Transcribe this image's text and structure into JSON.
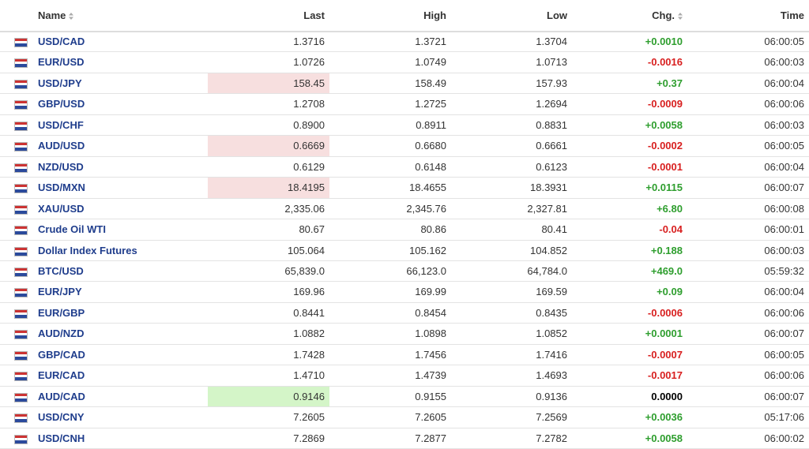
{
  "table": {
    "header": [
      "Name",
      "Last",
      "High",
      "Low",
      "Chg.",
      "Time"
    ],
    "rows": [
      [
        "USD/CAD",
        "1.3716",
        "1.3721",
        "1.3704",
        "+0.0010",
        "06:00:05"
      ],
      [
        "EUR/USD",
        "1.0726",
        "1.0749",
        "1.0713",
        "-0.0016",
        "06:00:03"
      ],
      [
        "USD/JPY",
        "158.45",
        "158.49",
        "157.93",
        "+0.37",
        "06:00:04"
      ],
      [
        "GBP/USD",
        "1.2708",
        "1.2725",
        "1.2694",
        "-0.0009",
        "06:00:06"
      ],
      [
        "USD/CHF",
        "0.8900",
        "0.8911",
        "0.8831",
        "+0.0058",
        "06:00:03"
      ],
      [
        "AUD/USD",
        "0.6669",
        "0.6680",
        "0.6661",
        "-0.0002",
        "06:00:05"
      ],
      [
        "NZD/USD",
        "0.6129",
        "0.6148",
        "0.6123",
        "-0.0001",
        "06:00:04"
      ],
      [
        "USD/MXN",
        "18.4195",
        "18.4655",
        "18.3931",
        "+0.0115",
        "06:00:07"
      ],
      [
        "XAU/USD",
        "2,335.06",
        "2,345.76",
        "2,327.81",
        "+6.80",
        "06:00:08"
      ],
      [
        "Crude Oil WTI",
        "80.67",
        "80.86",
        "80.41",
        "-0.04",
        "06:00:01"
      ],
      [
        "Dollar Index Futures",
        "105.064",
        "105.162",
        "104.852",
        "+0.188",
        "06:00:03"
      ],
      [
        "BTC/USD",
        "65,839.0",
        "66,123.0",
        "64,784.0",
        "+469.0",
        "05:59:32"
      ],
      [
        "EUR/JPY",
        "169.96",
        "169.99",
        "169.59",
        "+0.09",
        "06:00:04"
      ],
      [
        "EUR/GBP",
        "0.8441",
        "0.8454",
        "0.8435",
        "-0.0006",
        "06:00:06"
      ],
      [
        "AUD/NZD",
        "1.0882",
        "1.0898",
        "1.0852",
        "+0.0001",
        "06:00:07"
      ],
      [
        "GBP/CAD",
        "1.7428",
        "1.7456",
        "1.7416",
        "-0.0007",
        "06:00:05"
      ],
      [
        "EUR/CAD",
        "1.4710",
        "1.4739",
        "1.4693",
        "-0.0017",
        "06:00:06"
      ],
      [
        "AUD/CAD",
        "0.9146",
        "0.9155",
        "0.9136",
        "0.0000",
        "06:00:07"
      ],
      [
        "USD/CNY",
        "7.2605",
        "7.2605",
        "7.2569",
        "+0.0036",
        "05:17:06"
      ],
      [
        "USD/CNH",
        "7.2869",
        "7.2877",
        "7.2782",
        "+0.0058",
        "06:00:02"
      ]
    ],
    "last_cell_colors": [
      null,
      null,
      "#f7dfdf",
      null,
      null,
      "#f7dfdf",
      null,
      "#f7dfdf",
      null,
      null,
      null,
      null,
      null,
      null,
      null,
      null,
      null,
      "#d4f5c8",
      null,
      null
    ]
  }
}
